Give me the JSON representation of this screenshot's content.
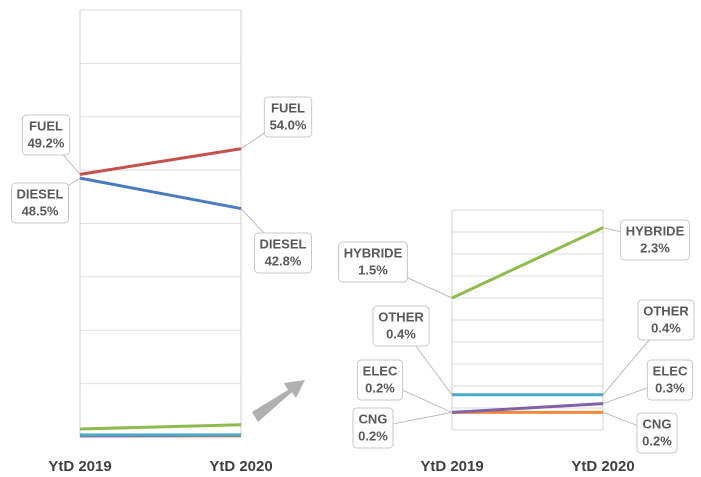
{
  "chart_data": [
    {
      "type": "slope",
      "categories": [
        "YtD 2019",
        "YtD 2020"
      ],
      "ylim": [
        0,
        80
      ],
      "yticks": [
        0,
        10,
        20,
        30,
        40,
        50,
        60,
        70,
        80
      ],
      "grid": true,
      "series": [
        {
          "name": "FUEL",
          "color": "#c8504a",
          "values": [
            49.2,
            54.0
          ],
          "value_labels": [
            "49.2%",
            "54.0%"
          ]
        },
        {
          "name": "DIESEL",
          "color": "#4a7bc2",
          "values": [
            48.5,
            42.8
          ],
          "value_labels": [
            "48.5%",
            "42.8%"
          ]
        },
        {
          "name": "HYBRIDE",
          "color": "#8fbc4e",
          "values": [
            1.5,
            2.3
          ]
        },
        {
          "name": "OTHER",
          "color": "#4bacc6",
          "values": [
            0.4,
            0.4
          ]
        },
        {
          "name": "ELEC",
          "color": "#7f62a8",
          "values": [
            0.2,
            0.3
          ]
        },
        {
          "name": "CNG",
          "color": "#f08a3a",
          "values": [
            0.2,
            0.2
          ]
        }
      ]
    },
    {
      "type": "slope",
      "categories": [
        "YtD 2019",
        "YtD 2020"
      ],
      "ylim": [
        0,
        2.5
      ],
      "yticks": [
        0,
        0.25,
        0.5,
        0.75,
        1,
        1.25,
        1.5,
        1.75,
        2,
        2.25,
        2.5
      ],
      "grid": true,
      "series": [
        {
          "name": "HYBRIDE",
          "color": "#8fbc4e",
          "values": [
            1.5,
            2.3
          ],
          "value_labels": [
            "1.5%",
            "2.3%"
          ]
        },
        {
          "name": "OTHER",
          "color": "#4bacc6",
          "values": [
            0.4,
            0.4
          ],
          "value_labels": [
            "0.4%",
            "0.4%"
          ]
        },
        {
          "name": "ELEC",
          "color": "#7f62a8",
          "values": [
            0.2,
            0.3
          ],
          "value_labels": [
            "0.2%",
            "0.3%"
          ]
        },
        {
          "name": "CNG",
          "color": "#f08a3a",
          "values": [
            0.2,
            0.2
          ],
          "value_labels": [
            "0.2%",
            "0.2%"
          ]
        }
      ]
    }
  ]
}
